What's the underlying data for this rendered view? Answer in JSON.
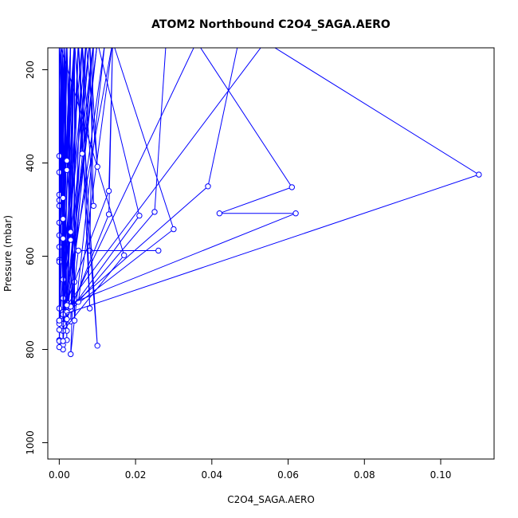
{
  "chart_data": {
    "type": "line",
    "title": "ATOM2 Northbound C2O4_SAGA.AERO",
    "xlabel": "C2O4_SAGA.AERO",
    "ylabel": "Pressure (mbar)",
    "xlim": [
      -0.003,
      0.114
    ],
    "ylim": [
      1035,
      153
    ],
    "y_reversed": true,
    "x_ticks": [
      0.0,
      0.02,
      0.04,
      0.06,
      0.08,
      0.1
    ],
    "x_tick_labels": [
      "0.00",
      "0.02",
      "0.04",
      "0.06",
      "0.08",
      "0.10"
    ],
    "y_ticks": [
      200,
      400,
      600,
      800,
      1000
    ],
    "y_tick_labels": [
      "200",
      "400",
      "600",
      "800",
      "1000"
    ],
    "grid": false,
    "color": "#0000ff",
    "series": [
      {
        "points": [
          [
            0.001,
            738
          ],
          [
            0.0005,
            140
          ],
          [
            0.002,
            780
          ],
          [
            0.0015,
            140
          ],
          [
            0.001,
            790
          ],
          [
            0.003,
            140
          ],
          [
            0.002,
            760
          ],
          [
            0.004,
            140
          ],
          [
            0.001,
            800
          ],
          [
            0.0005,
            140
          ],
          [
            0.002,
            715
          ],
          [
            0.005,
            140
          ],
          [
            0.003,
            740
          ],
          [
            0.007,
            140
          ],
          [
            0.001,
            690
          ],
          [
            0.009,
            140
          ],
          [
            0.002,
            720
          ],
          [
            0.012,
            140
          ],
          [
            0.003,
            810
          ],
          [
            0.006,
            140
          ],
          [
            0.0,
            740
          ],
          [
            0.003,
            140
          ],
          [
            0.001,
            760
          ],
          [
            0.002,
            140
          ],
          [
            0.0,
            780
          ],
          [
            0.004,
            140
          ],
          [
            0.002,
            700
          ],
          [
            0.008,
            140
          ],
          [
            0.001,
            650
          ],
          [
            0.0005,
            140
          ]
        ]
      },
      {
        "points": [
          [
            0.014,
            140
          ],
          [
            0.013,
            460
          ],
          [
            0.001,
            720
          ],
          [
            0.014,
            140
          ],
          [
            0.013,
            510
          ],
          [
            0.002,
            735
          ],
          [
            0.01,
            140
          ],
          [
            0.021,
            513
          ],
          [
            0.003,
            715
          ],
          [
            0.009,
            140
          ],
          [
            0.008,
            588
          ],
          [
            0.026,
            588
          ],
          [
            0.005,
            588
          ],
          [
            0.004,
            655
          ],
          [
            0.0,
            140
          ]
        ]
      },
      {
        "points": [
          [
            0.028,
            140
          ],
          [
            0.025,
            505
          ],
          [
            0.005,
            698
          ],
          [
            0.014,
            140
          ],
          [
            0.03,
            542
          ],
          [
            0.002,
            720
          ],
          [
            0.0,
            140
          ],
          [
            0.017,
            598
          ],
          [
            0.001,
            760
          ],
          [
            0.01,
            140
          ],
          [
            0.001,
            745
          ],
          [
            0.002,
            140
          ]
        ]
      },
      {
        "points": [
          [
            0.047,
            140
          ],
          [
            0.039,
            450
          ],
          [
            0.003,
            708
          ],
          [
            0.036,
            140
          ],
          [
            0.061,
            452
          ],
          [
            0.042,
            508
          ],
          [
            0.062,
            508
          ],
          [
            0.002,
            705
          ],
          [
            0.054,
            140
          ],
          [
            0.11,
            425
          ],
          [
            0.001,
            725
          ]
        ]
      },
      {
        "points": [
          [
            0.0,
            385
          ],
          [
            0.0005,
            140
          ],
          [
            0.0,
            420
          ],
          [
            0.0015,
            140
          ],
          [
            0.0,
            468
          ],
          [
            0.0,
            140
          ],
          [
            0.0,
            480
          ],
          [
            0.001,
            140
          ],
          [
            0.0,
            492
          ],
          [
            0.0005,
            140
          ],
          [
            0.0,
            528
          ],
          [
            0.002,
            140
          ],
          [
            0.0,
            555
          ],
          [
            0.001,
            140
          ],
          [
            0.0,
            580
          ],
          [
            0.0005,
            140
          ],
          [
            0.0,
            608
          ],
          [
            0.0,
            140
          ],
          [
            0.0,
            612
          ],
          [
            0.0015,
            140
          ],
          [
            0.0,
            712
          ],
          [
            0.001,
            140
          ],
          [
            0.0,
            738
          ],
          [
            0.0005,
            140
          ],
          [
            0.0,
            745
          ],
          [
            0.001,
            140
          ],
          [
            0.0,
            758
          ],
          [
            0.0005,
            140
          ],
          [
            0.0,
            782
          ],
          [
            0.0,
            140
          ],
          [
            0.0,
            795
          ],
          [
            0.001,
            140
          ]
        ]
      },
      {
        "points": [
          [
            0.002,
            395
          ],
          [
            0.003,
            140
          ],
          [
            0.002,
            415
          ],
          [
            0.004,
            140
          ],
          [
            0.001,
            475
          ],
          [
            0.002,
            140
          ],
          [
            0.001,
            520
          ],
          [
            0.003,
            140
          ],
          [
            0.001,
            562
          ],
          [
            0.002,
            140
          ],
          [
            0.003,
            548
          ],
          [
            0.005,
            140
          ],
          [
            0.003,
            565
          ],
          [
            0.004,
            140
          ],
          [
            0.006,
            380
          ],
          [
            0.007,
            140
          ],
          [
            0.01,
            408
          ],
          [
            0.008,
            140
          ],
          [
            0.009,
            492
          ],
          [
            0.006,
            140
          ],
          [
            0.008,
            712
          ],
          [
            0.005,
            140
          ],
          [
            0.01,
            792
          ],
          [
            0.004,
            140
          ],
          [
            0.004,
            738
          ],
          [
            0.002,
            140
          ],
          [
            0.001,
            782
          ],
          [
            0.001,
            140
          ],
          [
            0.0,
            738
          ],
          [
            0.0,
            140
          ]
        ]
      }
    ]
  }
}
